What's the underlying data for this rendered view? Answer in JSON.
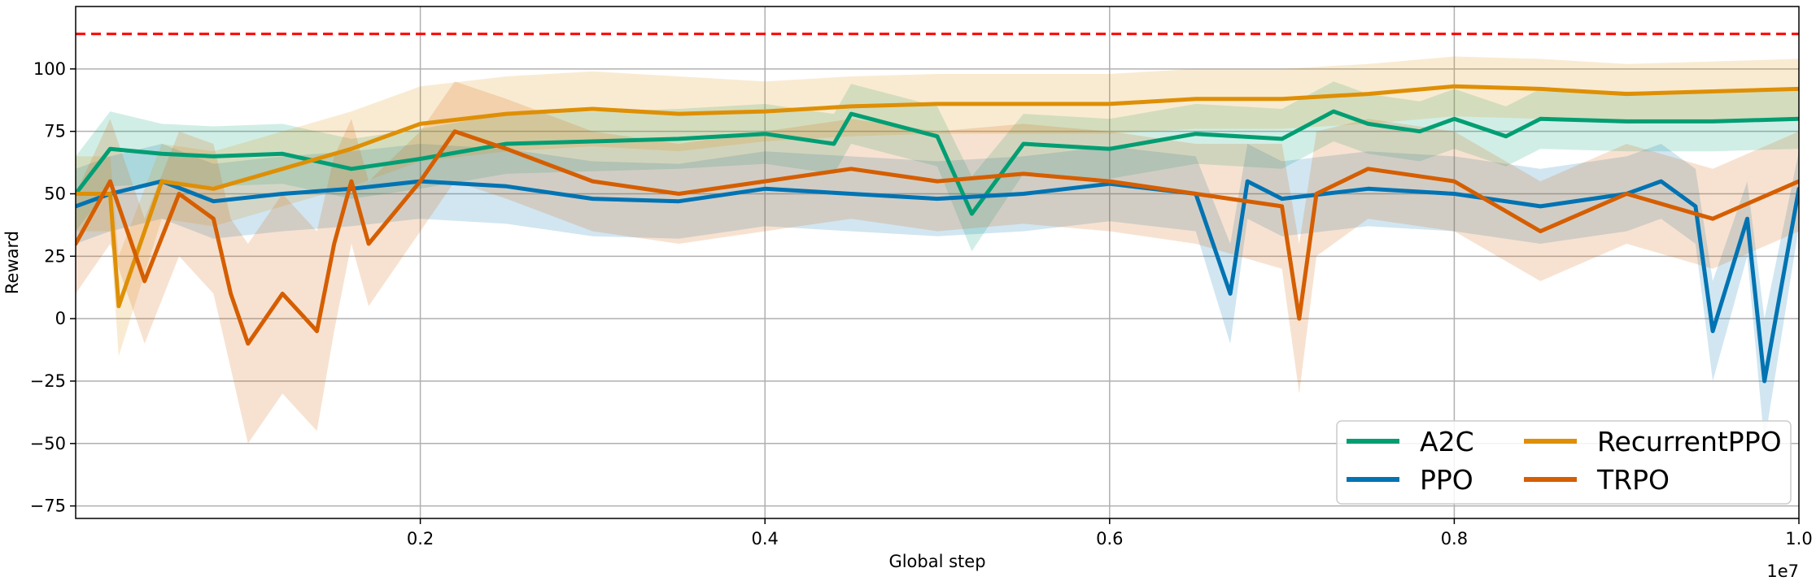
{
  "chart_data": {
    "type": "line",
    "xlabel": "Global step",
    "ylabel": "Reward",
    "x_offset_label": "1e7",
    "xlim": [
      0,
      1.0
    ],
    "ylim": [
      -80,
      125
    ],
    "x_ticks": [
      {
        "value": 0.2,
        "label": "0.2"
      },
      {
        "value": 0.4,
        "label": "0.4"
      },
      {
        "value": 0.6,
        "label": "0.6"
      },
      {
        "value": 0.8,
        "label": "0.8"
      },
      {
        "value": 1.0,
        "label": "1.0"
      }
    ],
    "y_ticks": [
      {
        "value": -75,
        "label": "−75"
      },
      {
        "value": -50,
        "label": "−50"
      },
      {
        "value": -25,
        "label": "−25"
      },
      {
        "value": 0,
        "label": "0"
      },
      {
        "value": 25,
        "label": "25"
      },
      {
        "value": 50,
        "label": "50"
      },
      {
        "value": 75,
        "label": "75"
      },
      {
        "value": 100,
        "label": "100"
      }
    ],
    "grid": true,
    "legend_position": "lower-right",
    "reference_line": {
      "y": 114,
      "color": "#ff0000",
      "style": "dashed"
    },
    "series": [
      {
        "name": "A2C",
        "color": "#029e73",
        "x": [
          0,
          0.02,
          0.05,
          0.08,
          0.12,
          0.16,
          0.2,
          0.25,
          0.3,
          0.35,
          0.4,
          0.44,
          0.45,
          0.5,
          0.52,
          0.55,
          0.6,
          0.65,
          0.7,
          0.73,
          0.75,
          0.78,
          0.8,
          0.83,
          0.85,
          0.9,
          0.95,
          1.0
        ],
        "y": [
          50,
          68,
          66,
          65,
          66,
          60,
          64,
          70,
          71,
          72,
          74,
          70,
          82,
          73,
          42,
          70,
          68,
          74,
          72,
          83,
          78,
          75,
          80,
          73,
          80,
          79,
          79,
          80
        ],
        "band": [
          15,
          15,
          12,
          12,
          12,
          12,
          12,
          12,
          12,
          12,
          12,
          12,
          12,
          12,
          15,
          12,
          12,
          12,
          12,
          12,
          12,
          12,
          12,
          12,
          12,
          12,
          12,
          12
        ]
      },
      {
        "name": "PPO",
        "color": "#0173b2",
        "x": [
          0,
          0.02,
          0.05,
          0.08,
          0.12,
          0.16,
          0.2,
          0.25,
          0.3,
          0.35,
          0.4,
          0.45,
          0.5,
          0.55,
          0.6,
          0.65,
          0.67,
          0.68,
          0.7,
          0.75,
          0.8,
          0.85,
          0.9,
          0.92,
          0.94,
          0.95,
          0.97,
          0.98,
          1.0
        ],
        "y": [
          45,
          50,
          55,
          47,
          50,
          52,
          55,
          53,
          48,
          47,
          52,
          50,
          48,
          50,
          54,
          50,
          10,
          55,
          48,
          52,
          50,
          45,
          50,
          55,
          45,
          -5,
          40,
          -25,
          52
        ],
        "band": [
          15,
          15,
          15,
          15,
          15,
          15,
          15,
          15,
          15,
          15,
          15,
          15,
          15,
          15,
          15,
          15,
          20,
          15,
          15,
          15,
          15,
          15,
          15,
          15,
          15,
          20,
          15,
          25,
          15
        ]
      },
      {
        "name": "RecurrentPPO",
        "color": "#de8f05",
        "x": [
          0,
          0.02,
          0.025,
          0.05,
          0.08,
          0.12,
          0.16,
          0.2,
          0.25,
          0.3,
          0.35,
          0.4,
          0.45,
          0.5,
          0.55,
          0.6,
          0.65,
          0.7,
          0.75,
          0.8,
          0.85,
          0.9,
          0.95,
          1.0
        ],
        "y": [
          50,
          50,
          5,
          55,
          52,
          60,
          68,
          78,
          82,
          84,
          82,
          83,
          85,
          86,
          86,
          86,
          88,
          88,
          90,
          93,
          92,
          90,
          91,
          92
        ],
        "band": [
          15,
          15,
          20,
          15,
          15,
          15,
          15,
          15,
          15,
          15,
          15,
          12,
          12,
          12,
          12,
          12,
          12,
          12,
          12,
          12,
          12,
          12,
          12,
          12
        ]
      },
      {
        "name": "TRPO",
        "color": "#d55e00",
        "x": [
          0,
          0.02,
          0.04,
          0.06,
          0.08,
          0.09,
          0.1,
          0.12,
          0.14,
          0.15,
          0.16,
          0.17,
          0.2,
          0.22,
          0.25,
          0.3,
          0.35,
          0.4,
          0.45,
          0.5,
          0.55,
          0.6,
          0.65,
          0.7,
          0.71,
          0.72,
          0.75,
          0.8,
          0.85,
          0.9,
          0.95,
          1.0
        ],
        "y": [
          30,
          55,
          15,
          50,
          40,
          10,
          -10,
          10,
          -5,
          30,
          55,
          30,
          55,
          75,
          68,
          55,
          50,
          55,
          60,
          55,
          58,
          55,
          50,
          45,
          0,
          50,
          60,
          55,
          35,
          50,
          40,
          55
        ],
        "band": [
          20,
          25,
          25,
          25,
          30,
          30,
          40,
          40,
          40,
          35,
          25,
          25,
          20,
          20,
          20,
          20,
          20,
          20,
          20,
          20,
          20,
          20,
          20,
          25,
          30,
          25,
          20,
          20,
          20,
          20,
          20,
          20
        ]
      }
    ]
  }
}
